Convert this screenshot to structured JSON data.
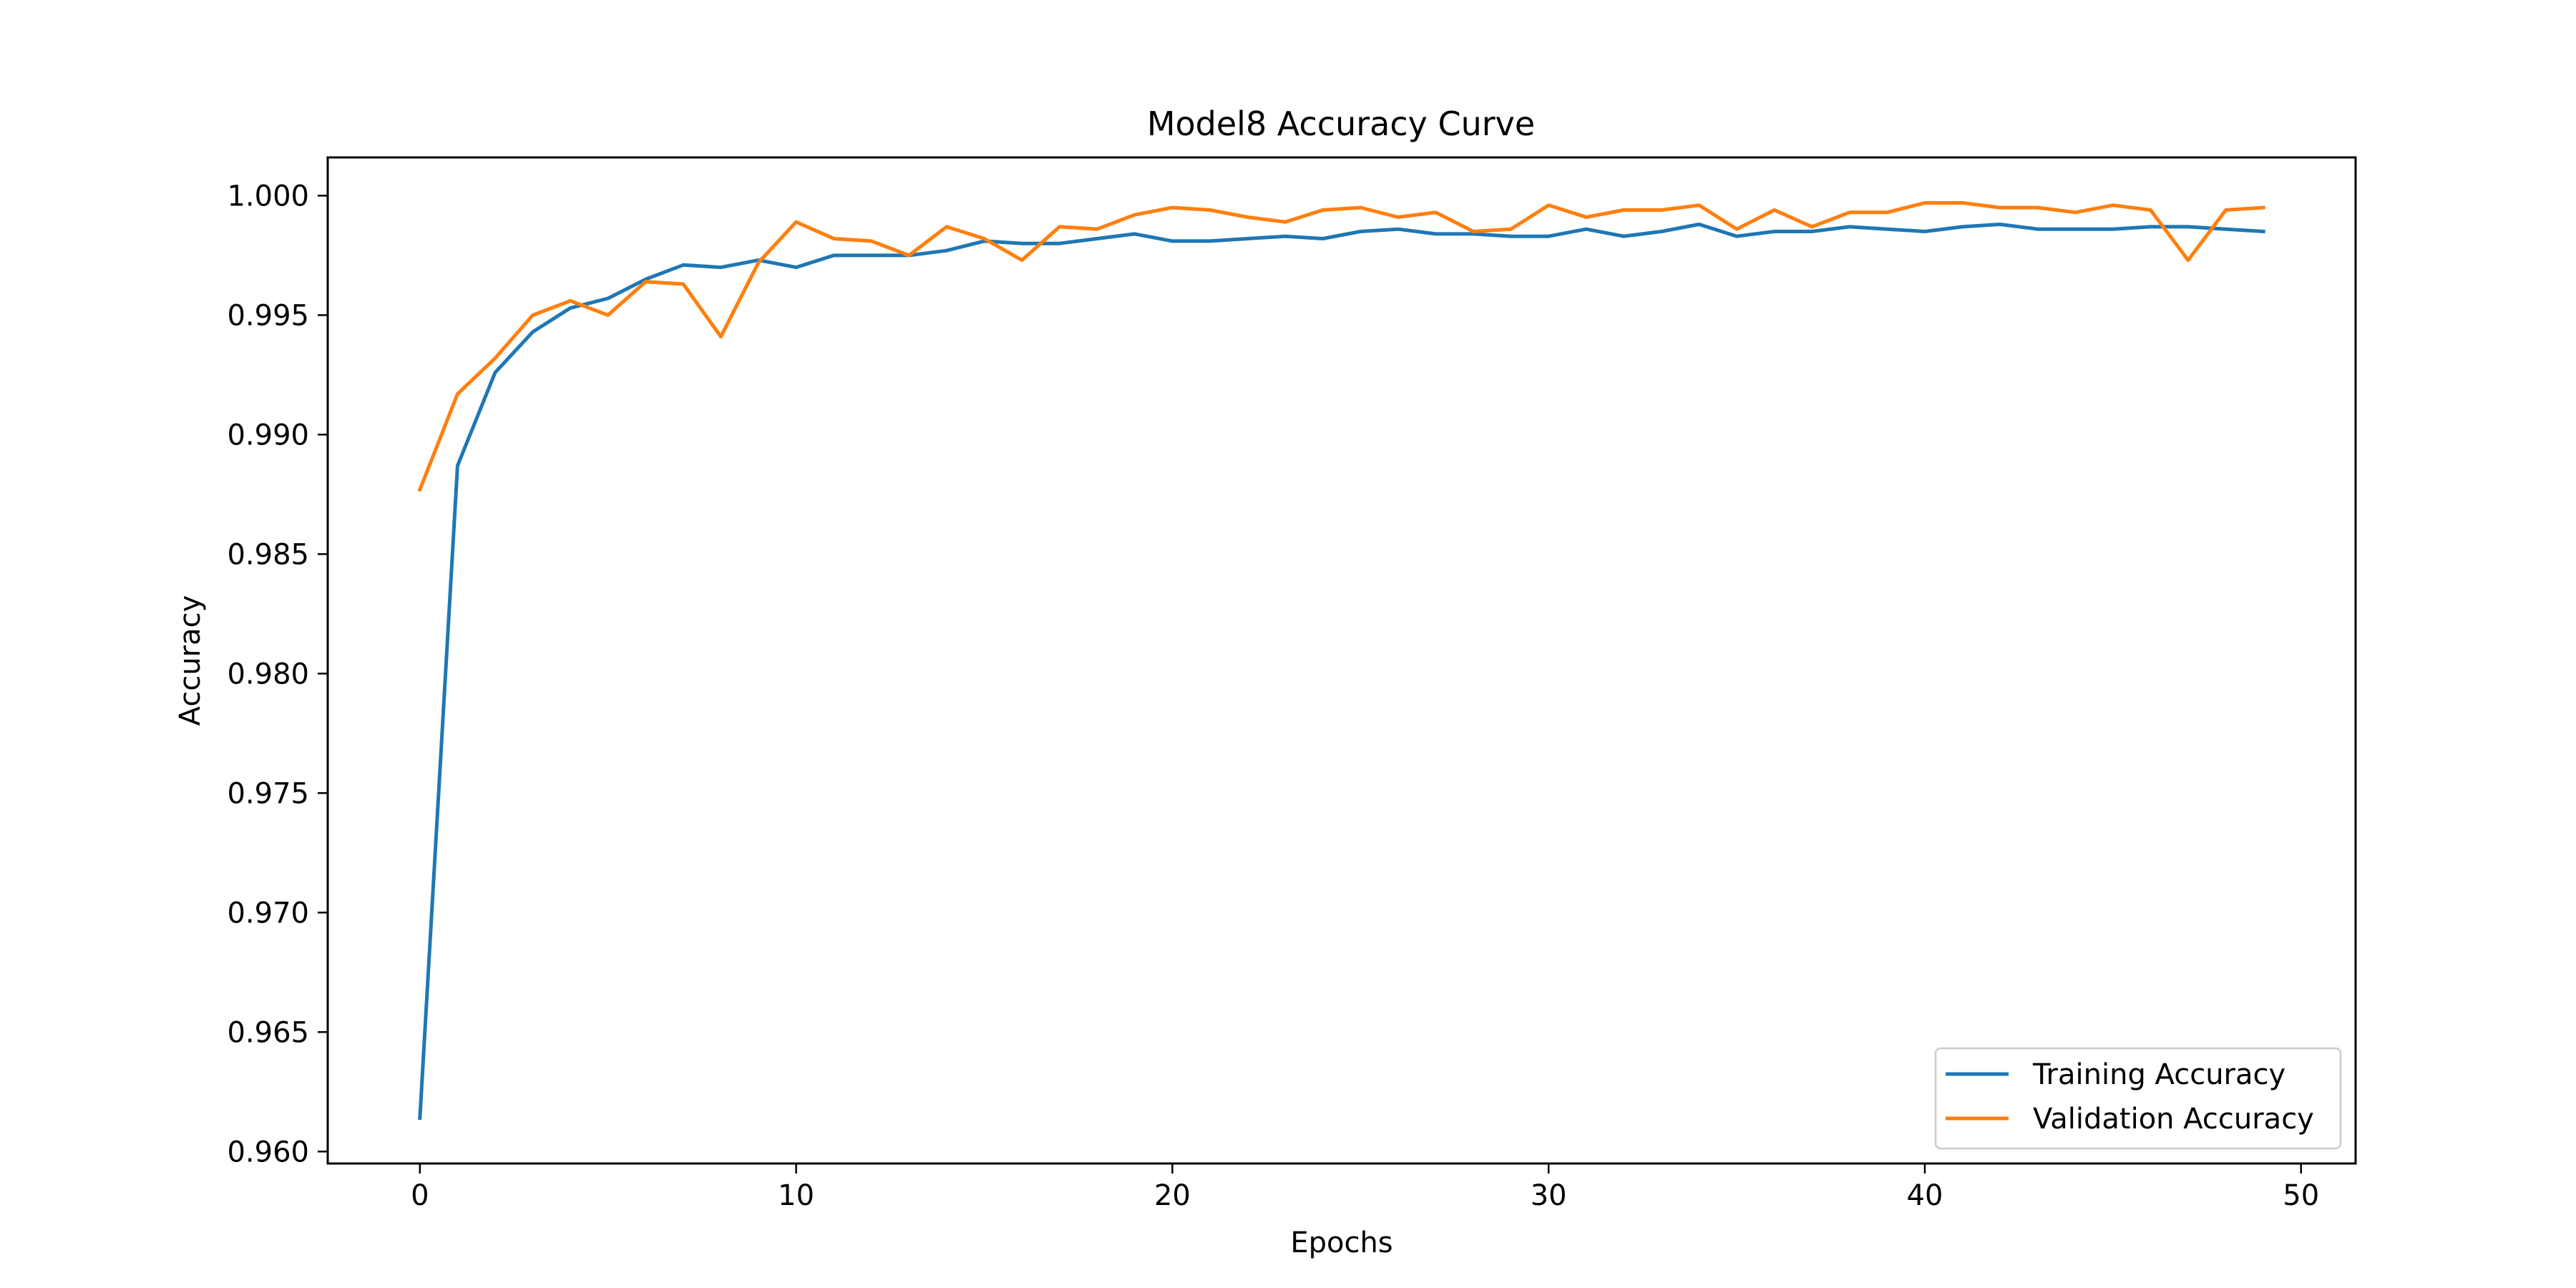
{
  "chart_data": {
    "type": "line",
    "title": "Model8 Accuracy Curve",
    "xlabel": "Epochs",
    "ylabel": "Accuracy",
    "xlim": [
      -2.45,
      51.45
    ],
    "ylim": [
      0.9595,
      1.0016
    ],
    "xticks": [
      0,
      10,
      20,
      30,
      40,
      50
    ],
    "yticks": [
      0.96,
      0.965,
      0.97,
      0.975,
      0.98,
      0.985,
      0.99,
      0.995,
      1.0
    ],
    "ytick_labels": [
      "0.960",
      "0.965",
      "0.970",
      "0.975",
      "0.980",
      "0.985",
      "0.990",
      "0.995",
      "1.000"
    ],
    "grid": false,
    "legend_position": "lower-right",
    "x": [
      0,
      1,
      2,
      3,
      4,
      5,
      6,
      7,
      8,
      9,
      10,
      11,
      12,
      13,
      14,
      15,
      16,
      17,
      18,
      19,
      20,
      21,
      22,
      23,
      24,
      25,
      26,
      27,
      28,
      29,
      30,
      31,
      32,
      33,
      34,
      35,
      36,
      37,
      38,
      39,
      40,
      41,
      42,
      43,
      44,
      45,
      46,
      47,
      48,
      49
    ],
    "series": [
      {
        "name": "Training Accuracy",
        "color": "#1f77b4",
        "values": [
          0.9614,
          0.9887,
          0.9926,
          0.9943,
          0.9953,
          0.9957,
          0.9965,
          0.9971,
          0.997,
          0.9973,
          0.997,
          0.9975,
          0.9975,
          0.9975,
          0.9977,
          0.9981,
          0.998,
          0.998,
          0.9982,
          0.9984,
          0.9981,
          0.9981,
          0.9982,
          0.9983,
          0.9982,
          0.9985,
          0.9986,
          0.9984,
          0.9984,
          0.9983,
          0.9983,
          0.9986,
          0.9983,
          0.9985,
          0.9988,
          0.9983,
          0.9985,
          0.9985,
          0.9987,
          0.9986,
          0.9985,
          0.9987,
          0.9988,
          0.9986,
          0.9986,
          0.9986,
          0.9987,
          0.9987,
          0.9986,
          0.9985
        ]
      },
      {
        "name": "Validation Accuracy",
        "color": "#ff7f0e",
        "values": [
          0.9877,
          0.9917,
          0.9932,
          0.995,
          0.9956,
          0.995,
          0.9964,
          0.9963,
          0.9941,
          0.9972,
          0.9989,
          0.9982,
          0.9981,
          0.9975,
          0.9987,
          0.9982,
          0.9973,
          0.9987,
          0.9986,
          0.9992,
          0.9995,
          0.9994,
          0.9991,
          0.9989,
          0.9994,
          0.9995,
          0.9991,
          0.9993,
          0.9985,
          0.9986,
          0.9996,
          0.9991,
          0.9994,
          0.9994,
          0.9996,
          0.9986,
          0.9994,
          0.9987,
          0.9993,
          0.9993,
          0.9997,
          0.9997,
          0.9995,
          0.9995,
          0.9993,
          0.9996,
          0.9994,
          0.9973,
          0.9994,
          0.9995
        ]
      }
    ]
  }
}
